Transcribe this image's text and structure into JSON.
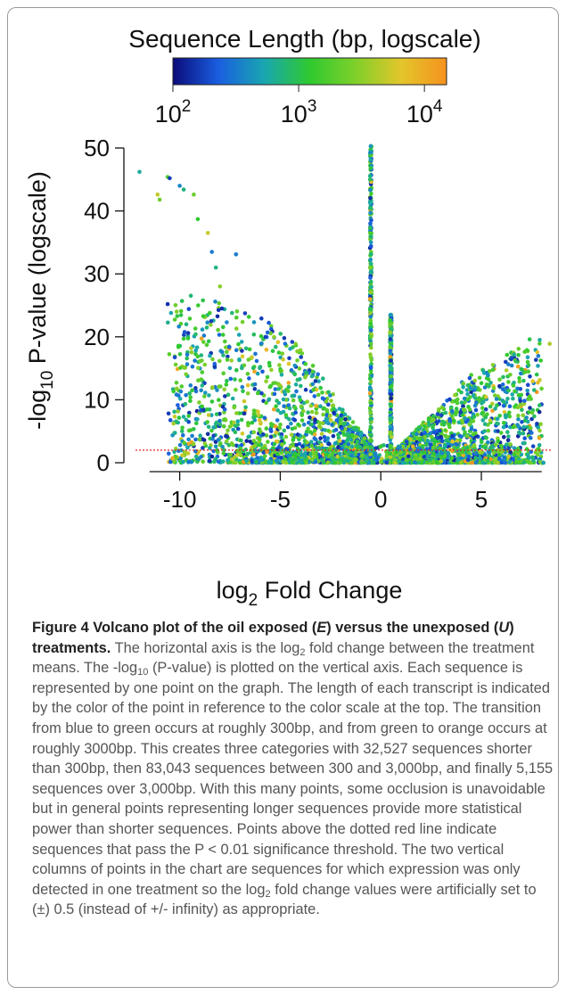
{
  "chart_data": {
    "type": "scatter",
    "colorbar": {
      "title": "Sequence Length (bp, logscale)",
      "range_bp": [
        100,
        15000
      ],
      "ticks": [
        {
          "base": "10",
          "exp": "2",
          "value": 100
        },
        {
          "base": "10",
          "exp": "3",
          "value": 1000
        },
        {
          "base": "10",
          "exp": "4",
          "value": 10000
        }
      ],
      "colors": [
        "#0b0b7a",
        "#1a5ee0",
        "#19a6b0",
        "#2fc92f",
        "#7fd02a",
        "#e3c62b",
        "#f6921e"
      ]
    },
    "x_axis": {
      "label_prefix": "log",
      "label_sub": "2",
      "label_suffix": " Fold Change",
      "range": [
        -12.2,
        8.5
      ],
      "ticks": [
        -10,
        -5,
        0,
        5
      ]
    },
    "y_axis": {
      "label_prefix": "-log",
      "label_sub": "10",
      "label_suffix": " P-value (logscale)",
      "range": [
        0,
        50
      ],
      "ticks": [
        0,
        10,
        20,
        30,
        40,
        50
      ]
    },
    "threshold_line": {
      "y": 2,
      "color": "#e0262c",
      "style": "dotted"
    },
    "vertical_columns": [
      {
        "x": -0.5,
        "y_max": 50.3
      },
      {
        "x": 0.5,
        "y_max": 23.5
      }
    ],
    "outlier_points": [
      [
        -12,
        46.2
      ],
      [
        -11.1,
        42.6
      ],
      [
        -11.0,
        41.8
      ],
      [
        -10.6,
        45.4
      ],
      [
        -10.5,
        45.2
      ],
      [
        -10.0,
        44.0
      ],
      [
        -9.8,
        43.4
      ],
      [
        -9.3,
        42.6
      ],
      [
        -9.1,
        38.7
      ],
      [
        -8.6,
        36.5
      ],
      [
        -8.4,
        33.5
      ],
      [
        -8.2,
        31.0
      ],
      [
        -10.6,
        25.2
      ],
      [
        -8.0,
        28.0
      ],
      [
        -7.2,
        33.1
      ],
      [
        -7.9,
        24.5
      ],
      [
        -7.4,
        23.8
      ],
      [
        7.9,
        19.5
      ],
      [
        8.4,
        18.9
      ],
      [
        7.4,
        19.6
      ]
    ],
    "envelope": {
      "left": [
        [
          -10.6,
          25
        ],
        [
          -9,
          28
        ],
        [
          -8,
          26
        ],
        [
          -7,
          24
        ],
        [
          -6,
          23
        ],
        [
          -5,
          22
        ],
        [
          -4,
          18
        ],
        [
          -3,
          14
        ],
        [
          -2,
          9
        ],
        [
          -1,
          5
        ],
        [
          0,
          1
        ]
      ],
      "right": [
        [
          0,
          1
        ],
        [
          1,
          3
        ],
        [
          2,
          6
        ],
        [
          3,
          9
        ],
        [
          4,
          13
        ],
        [
          5,
          15
        ],
        [
          6,
          17
        ],
        [
          7,
          18.5
        ],
        [
          8,
          19
        ]
      ]
    }
  },
  "caption": {
    "bold_1": "Figure 4 Volcano plot of the oil exposed (",
    "bold_e": "E",
    "bold_2": ") versus the unexposed (",
    "bold_u": "U",
    "bold_3": ") treatments.",
    "t1": " The horizontal axis is the log",
    "t1_sub": "2",
    "t2": " fold change between the treatment means. The -log",
    "t2_sub": "10",
    "t3": " (P-value) is plotted on the vertical axis. Each sequence is represented by one point on the graph. The length of each transcript is indicated by the color of the point in reference to the color scale at the top. The transition from blue to green occurs at roughly 300bp, and from green to orange occurs at roughly 3000bp. This creates three categories with 32,527 sequences shorter than 300bp, then 83,043 sequences between 300 and 3,000bp, and finally 5,155 sequences over 3,000bp. With this many points, some occlusion is unavoidable but in general points representing longer sequences provide more statistical power than shorter sequences. Points above the dotted red line indicate sequences that pass the P < 0.01 significance threshold. The two vertical columns of points in the chart are sequences for which expression was only detected in one treatment so the log",
    "t3_sub": "2",
    "t4": " fold change values were artificially set to (±) 0.5 (instead of +/- infinity) as appropriate."
  }
}
